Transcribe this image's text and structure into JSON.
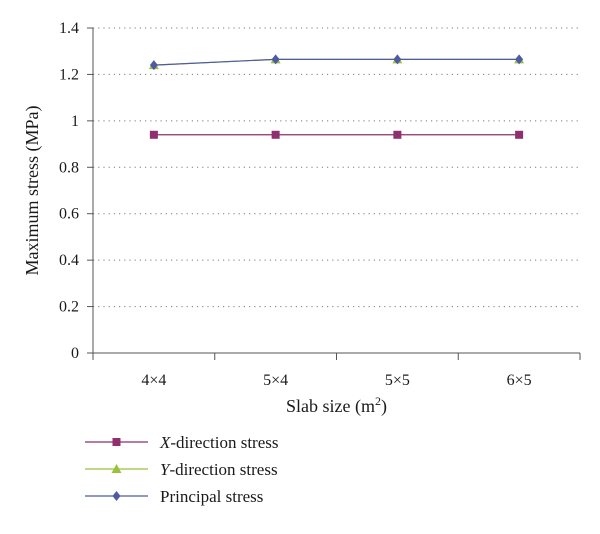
{
  "chart_data": {
    "type": "line",
    "categories": [
      "4×4",
      "5×4",
      "5×5",
      "6×5"
    ],
    "xlabel": "Slab size (m",
    "xlabel_sup": "2",
    "xlabel_close": ")",
    "ylabel": "Maximum stress (MPa)",
    "ylim": [
      0,
      1.4
    ],
    "yticks": [
      0,
      0.2,
      0.4,
      0.6,
      0.8,
      1,
      1.2,
      1.4
    ],
    "ytick_labels": [
      "0",
      "0.2",
      "0.4",
      "0.6",
      "0.8",
      "1",
      "1.2",
      "1.4"
    ],
    "grid": "horizontal dotted",
    "legend_position": "bottom",
    "series": [
      {
        "key": "x",
        "name_italic": "X",
        "name_rest": "-direction stress",
        "values": [
          0.94,
          0.94,
          0.94,
          0.94
        ],
        "color": "#8f2f6e",
        "marker": "square"
      },
      {
        "key": "y",
        "name_italic": "Y",
        "name_rest": "-direction stress",
        "values": [
          1.24,
          1.265,
          1.265,
          1.265
        ],
        "color": "#9ac23c",
        "marker": "triangle"
      },
      {
        "key": "p",
        "name_italic": "",
        "name_rest": "Principal stress",
        "values": [
          1.24,
          1.265,
          1.265,
          1.265
        ],
        "color": "#4e5aa3",
        "marker": "diamond"
      }
    ]
  }
}
